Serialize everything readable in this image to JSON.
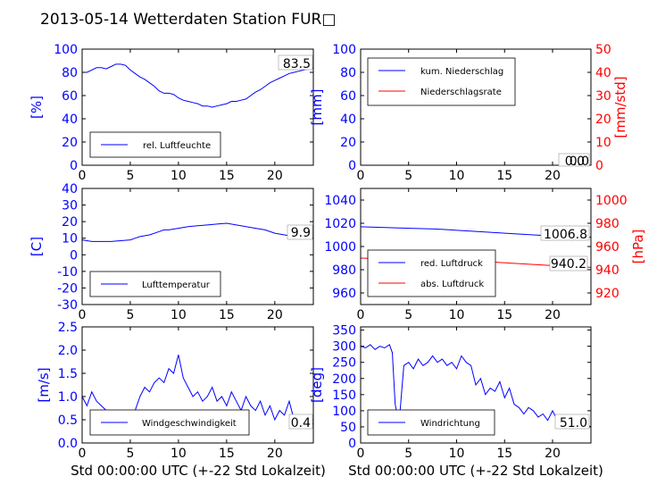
{
  "figure": {
    "title": "2013-05-14 Wetterdaten Station FUR□",
    "xlabel": "Std 00:00:00 UTC (+-22 Std Lokalzeit)"
  },
  "colors": {
    "blue": "#0000ff",
    "red": "#ff0000",
    "axis": "#000000"
  },
  "chart_data": [
    {
      "id": "humidity",
      "type": "line",
      "title": "",
      "xlim": [
        0,
        24
      ],
      "ylim": [
        0,
        100
      ],
      "xticks": [
        0,
        5,
        10,
        15,
        20
      ],
      "yticks": [
        0,
        20,
        40,
        60,
        80,
        100
      ],
      "ylabel": "[%]",
      "legend": {
        "location": "lower-left",
        "entries": [
          "rel. Luftfeuchte"
        ]
      },
      "annotation": "83.5",
      "series": [
        {
          "name": "rel. Luftfeuchte",
          "color": "#0000ff",
          "x": [
            0,
            0.5,
            1,
            1.5,
            2,
            2.5,
            3,
            3.5,
            4,
            4.5,
            5,
            5.5,
            6,
            6.5,
            7,
            7.5,
            8,
            8.5,
            9,
            9.5,
            10,
            10.5,
            11,
            11.5,
            12,
            12.5,
            13,
            13.5,
            14,
            14.5,
            15,
            15.5,
            16,
            16.5,
            17,
            17.5,
            18,
            18.5,
            19,
            19.5,
            20,
            20.5,
            21,
            21.5,
            22,
            22.5,
            23,
            23.5,
            24
          ],
          "y": [
            80,
            80,
            82,
            84,
            84,
            83,
            85,
            87,
            87,
            86,
            82,
            79,
            76,
            74,
            71,
            68,
            64,
            62,
            62,
            61,
            58,
            56,
            55,
            54,
            53,
            51,
            51,
            50,
            51,
            52,
            53,
            55,
            55,
            56,
            57,
            60,
            63,
            65,
            68,
            71,
            73,
            75,
            77,
            79,
            80,
            81,
            82,
            83,
            84
          ]
        }
      ]
    },
    {
      "id": "precipitation",
      "type": "line",
      "title": "",
      "xlim": [
        0,
        24
      ],
      "ylim": [
        0,
        100
      ],
      "y2lim": [
        0,
        50
      ],
      "xticks": [
        0,
        5,
        10,
        15,
        20
      ],
      "yticks": [
        0,
        20,
        40,
        60,
        80,
        100
      ],
      "y2ticks": [
        0,
        10,
        20,
        30,
        40,
        50
      ],
      "ylabel": "[mm]",
      "y2label": "[mm/std]",
      "legend": {
        "location": "upper-left",
        "entries": [
          "kum. Niederschlag",
          "Niederschlagsrate"
        ]
      },
      "annotation": "0.0",
      "series": [
        {
          "name": "kum. Niederschlag",
          "color": "#0000ff",
          "axis": "left",
          "x": [
            0,
            24
          ],
          "y": [
            0,
            0
          ]
        },
        {
          "name": "Niederschlagsrate",
          "color": "#ff0000",
          "axis": "right",
          "x": [
            0,
            24
          ],
          "y": [
            0,
            0
          ]
        }
      ]
    },
    {
      "id": "temperature",
      "type": "line",
      "title": "",
      "xlim": [
        0,
        24
      ],
      "ylim": [
        -30,
        40
      ],
      "xticks": [
        0,
        5,
        10,
        15,
        20
      ],
      "yticks": [
        -30,
        -20,
        -10,
        0,
        10,
        20,
        30,
        40
      ],
      "ylabel": "[C]",
      "legend": {
        "location": "lower-left",
        "entries": [
          "Lufttemperatur"
        ]
      },
      "annotation": "9.9",
      "series": [
        {
          "name": "Lufttemperatur",
          "color": "#0000ff",
          "x": [
            0,
            1,
            2,
            3,
            4,
            5,
            5.5,
            6,
            7,
            8,
            8.5,
            9,
            10,
            11,
            12,
            13,
            14,
            15,
            16,
            17,
            18,
            19,
            20,
            21,
            22,
            23,
            24
          ],
          "y": [
            9,
            8,
            8,
            8,
            8.5,
            9,
            10,
            11,
            12,
            14,
            15,
            15,
            16,
            17,
            17.5,
            18,
            18.5,
            19,
            18,
            17,
            16,
            15,
            13,
            12,
            11,
            10.5,
            9.9
          ]
        }
      ]
    },
    {
      "id": "pressure",
      "type": "line",
      "title": "",
      "xlim": [
        0,
        24
      ],
      "ylim": [
        950,
        1050
      ],
      "y2lim": [
        910,
        1010
      ],
      "xticks": [
        0,
        5,
        10,
        15,
        20
      ],
      "yticks": [
        960,
        980,
        1000,
        1020,
        1040
      ],
      "y2ticks": [
        920,
        940,
        960,
        980,
        1000
      ],
      "ylabel": "",
      "y2label": "[hPa]",
      "legend": {
        "location": "lower-left",
        "entries": [
          "red. Luftdruck",
          "abs. Luftdruck"
        ]
      },
      "annotations": [
        "1006.8",
        "940.2"
      ],
      "series": [
        {
          "name": "red. Luftdruck",
          "color": "#0000ff",
          "axis": "left",
          "x": [
            0,
            4,
            8,
            12,
            16,
            20,
            24
          ],
          "y": [
            1017,
            1016,
            1015,
            1013,
            1011,
            1009,
            1008
          ]
        },
        {
          "name": "abs. Luftdruck",
          "color": "#ff0000",
          "axis": "right",
          "x": [
            0,
            4,
            8,
            12,
            16,
            20,
            24
          ],
          "y": [
            950,
            949,
            948.5,
            947.5,
            945.5,
            943.5,
            942
          ]
        }
      ]
    },
    {
      "id": "windspeed",
      "type": "line",
      "title": "",
      "xlim": [
        0,
        24
      ],
      "ylim": [
        0,
        2.5
      ],
      "xticks": [
        0,
        5,
        10,
        15,
        20
      ],
      "yticks": [
        0.0,
        0.5,
        1.0,
        1.5,
        2.0,
        2.5
      ],
      "ylabel": "[m/s]",
      "legend": {
        "location": "lower-left",
        "entries": [
          "Windgeschwindigkeit"
        ]
      },
      "annotation": "0.4",
      "series": [
        {
          "name": "Windgeschwindigkeit",
          "color": "#0000ff",
          "x": [
            0,
            0.5,
            1,
            1.5,
            2,
            2.5,
            3,
            3.5,
            4,
            4.5,
            5,
            5.5,
            6,
            6.5,
            7,
            7.5,
            8,
            8.5,
            9,
            9.5,
            10,
            10.5,
            11,
            11.5,
            12,
            12.5,
            13,
            13.5,
            14,
            14.5,
            15,
            15.5,
            16,
            16.5,
            17,
            17.5,
            18,
            18.5,
            19,
            19.5,
            20,
            20.5,
            21,
            21.5,
            22,
            22.5,
            23,
            23.5,
            24
          ],
          "y": [
            1.0,
            0.8,
            1.1,
            0.9,
            0.8,
            0.7,
            0.5,
            0.4,
            0.3,
            0.4,
            0.5,
            0.7,
            1.0,
            1.2,
            1.1,
            1.3,
            1.4,
            1.3,
            1.6,
            1.5,
            1.9,
            1.4,
            1.2,
            1.0,
            1.1,
            0.9,
            1.0,
            1.2,
            0.9,
            1.0,
            0.8,
            1.1,
            0.9,
            0.7,
            1.0,
            0.8,
            0.7,
            0.9,
            0.6,
            0.8,
            0.5,
            0.7,
            0.6,
            0.9,
            0.5,
            0.6,
            0.4,
            0.5,
            0.4
          ]
        }
      ]
    },
    {
      "id": "winddirection",
      "type": "line",
      "title": "",
      "xlim": [
        0,
        24
      ],
      "ylim": [
        0,
        360
      ],
      "xticks": [
        0,
        5,
        10,
        15,
        20
      ],
      "yticks": [
        0,
        50,
        100,
        150,
        200,
        250,
        300,
        350
      ],
      "ylabel": "[deg]",
      "legend": {
        "location": "lower-left",
        "entries": [
          "Windrichtung"
        ]
      },
      "annotation": "51.0",
      "series": [
        {
          "name": "Windrichtung",
          "color": "#0000ff",
          "x": [
            0,
            0.5,
            1,
            1.5,
            2,
            2.5,
            3,
            3.3,
            3.6,
            4,
            4.5,
            5,
            5.5,
            6,
            6.5,
            7,
            7.5,
            8,
            8.5,
            9,
            9.5,
            10,
            10.5,
            11,
            11.5,
            12,
            12.5,
            13,
            13.5,
            14,
            14.5,
            15,
            15.5,
            16,
            16.5,
            17,
            17.5,
            18,
            18.5,
            19,
            19.5,
            20,
            20.5,
            21,
            21.5,
            22,
            22.5,
            23,
            23.5,
            24
          ],
          "y": [
            300,
            295,
            305,
            290,
            300,
            295,
            305,
            280,
            120,
            60,
            240,
            250,
            230,
            260,
            240,
            250,
            270,
            250,
            260,
            240,
            250,
            230,
            270,
            250,
            240,
            180,
            200,
            150,
            170,
            160,
            190,
            140,
            170,
            120,
            110,
            90,
            110,
            100,
            80,
            90,
            70,
            100,
            70,
            80,
            60,
            80,
            50,
            60,
            55,
            51
          ]
        }
      ]
    }
  ]
}
